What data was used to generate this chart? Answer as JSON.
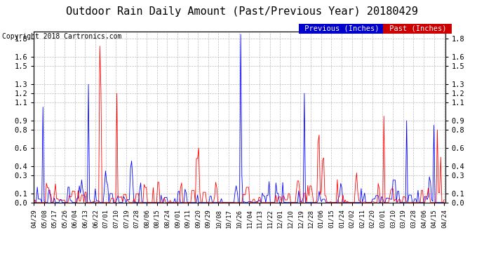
{
  "title": "Outdoor Rain Daily Amount (Past/Previous Year) 20180429",
  "copyright": "Copyright 2018 Cartronics.com",
  "legend_previous": "Previous (Inches)",
  "legend_past": "Past (Inches)",
  "previous_color": "#0000FF",
  "past_color": "#FF0000",
  "legend_previous_bg": "#0000cc",
  "legend_past_bg": "#cc0000",
  "yticks": [
    0.0,
    0.1,
    0.3,
    0.4,
    0.6,
    0.8,
    0.9,
    1.1,
    1.2,
    1.3,
    1.5,
    1.6,
    1.8
  ],
  "ylim": [
    0.0,
    1.88
  ],
  "background_color": "#ffffff",
  "plot_bg": "#ffffff",
  "grid_color": "#bbbbbb",
  "title_fontsize": 11,
  "copyright_fontsize": 7,
  "n_points": 362,
  "seed": 42,
  "x_labels": [
    "04/29",
    "05/08",
    "05/17",
    "05/26",
    "06/04",
    "06/13",
    "06/22",
    "07/01",
    "07/10",
    "07/19",
    "07/28",
    "08/06",
    "08/15",
    "08/24",
    "09/01",
    "09/11",
    "09/20",
    "09/29",
    "10/08",
    "10/17",
    "10/26",
    "11/04",
    "11/13",
    "11/22",
    "12/01",
    "12/10",
    "12/19",
    "12/28",
    "01/06",
    "01/15",
    "01/24",
    "02/02",
    "02/11",
    "02/20",
    "03/01",
    "03/10",
    "03/19",
    "03/28",
    "04/06",
    "04/15",
    "04/24"
  ]
}
